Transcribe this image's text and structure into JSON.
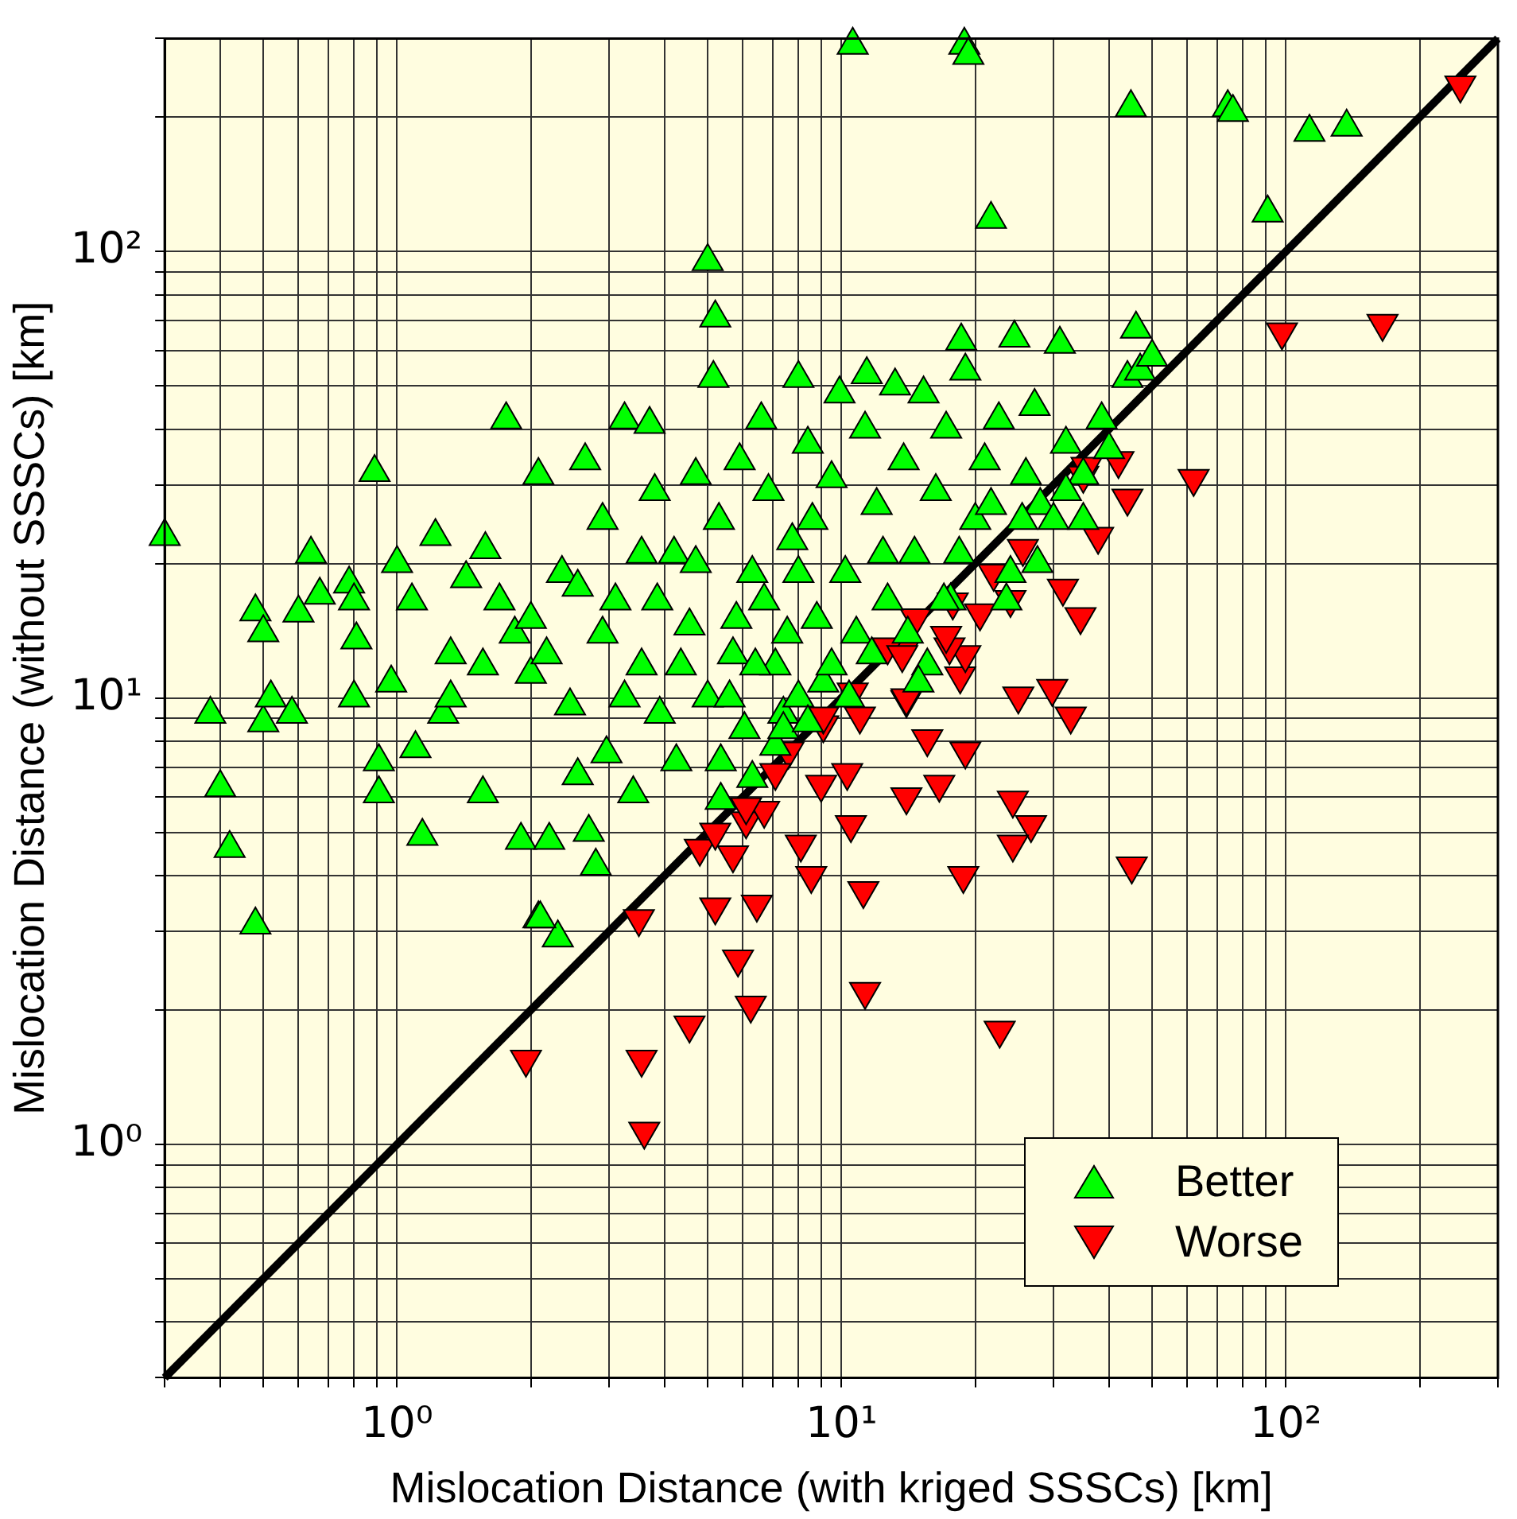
{
  "chart_data": {
    "type": "scatter",
    "xlabel": "Mislocation Distance (with kriged SSSCs) [km]",
    "ylabel": "Mislocation Distance (without SSSCs) [km]",
    "log": "xy",
    "grid": true,
    "legend": "bottom right",
    "xlim": [
      0.3,
      300
    ],
    "ylim": [
      0.3,
      300
    ],
    "xticks": [
      {
        "value": 0.3,
        "label": null
      },
      {
        "value": 0.4,
        "label": null
      },
      {
        "value": 0.5,
        "label": null
      },
      {
        "value": 0.6,
        "label": null
      },
      {
        "value": 0.7,
        "label": null
      },
      {
        "value": 0.8,
        "label": null
      },
      {
        "value": 0.9,
        "label": null
      },
      {
        "value": 1,
        "label": "10⁰"
      },
      {
        "value": 2,
        "label": null
      },
      {
        "value": 3,
        "label": null
      },
      {
        "value": 4,
        "label": null
      },
      {
        "value": 5,
        "label": null
      },
      {
        "value": 6,
        "label": null
      },
      {
        "value": 7,
        "label": null
      },
      {
        "value": 8,
        "label": null
      },
      {
        "value": 9,
        "label": null
      },
      {
        "value": 10,
        "label": "10¹"
      },
      {
        "value": 20,
        "label": null
      },
      {
        "value": 30,
        "label": null
      },
      {
        "value": 40,
        "label": null
      },
      {
        "value": 50,
        "label": null
      },
      {
        "value": 60,
        "label": null
      },
      {
        "value": 70,
        "label": null
      },
      {
        "value": 80,
        "label": null
      },
      {
        "value": 90,
        "label": null
      },
      {
        "value": 100,
        "label": "10²"
      },
      {
        "value": 200,
        "label": null
      },
      {
        "value": 300,
        "label": null
      }
    ],
    "yticks": [
      {
        "value": 0.3,
        "label": null
      },
      {
        "value": 0.4,
        "label": null
      },
      {
        "value": 0.5,
        "label": null
      },
      {
        "value": 0.6,
        "label": null
      },
      {
        "value": 0.7,
        "label": null
      },
      {
        "value": 0.8,
        "label": null
      },
      {
        "value": 0.9,
        "label": null
      },
      {
        "value": 1,
        "label": "10⁰"
      },
      {
        "value": 2,
        "label": null
      },
      {
        "value": 3,
        "label": null
      },
      {
        "value": 4,
        "label": null
      },
      {
        "value": 5,
        "label": null
      },
      {
        "value": 6,
        "label": null
      },
      {
        "value": 7,
        "label": null
      },
      {
        "value": 8,
        "label": null
      },
      {
        "value": 9,
        "label": null
      },
      {
        "value": 10,
        "label": "10¹"
      },
      {
        "value": 20,
        "label": null
      },
      {
        "value": 30,
        "label": null
      },
      {
        "value": 40,
        "label": null
      },
      {
        "value": 50,
        "label": null
      },
      {
        "value": 60,
        "label": null
      },
      {
        "value": 70,
        "label": null
      },
      {
        "value": 80,
        "label": null
      },
      {
        "value": 90,
        "label": null
      },
      {
        "value": 100,
        "label": "10²"
      },
      {
        "value": 200,
        "label": null
      },
      {
        "value": 300,
        "label": null
      }
    ],
    "series": [
      {
        "type": "line",
        "color": "#000000",
        "x": [
          0.3,
          300
        ],
        "values": [
          0.3,
          300
        ],
        "marker": "none",
        "line_style": "solid"
      },
      {
        "name": "Better",
        "color": "#00ff00",
        "marker": "triangle",
        "x": [
          0.3,
          0.38,
          0.4,
          0.42,
          0.48,
          0.48,
          0.5,
          0.5,
          0.52,
          0.6,
          0.58,
          0.64,
          0.67,
          0.78,
          0.8,
          0.81,
          0.8,
          0.89,
          0.91,
          0.91,
          0.97,
          1.0,
          1.08,
          1.1,
          1.14,
          1.22,
          1.27,
          1.32,
          1.43,
          1.58,
          1.56,
          1.76,
          1.84,
          1.9,
          2.0,
          2.08,
          2.08,
          2.2,
          2.3,
          2.35,
          2.45,
          2.55,
          2.65,
          2.7,
          2.8,
          2.9,
          2.96,
          3.1,
          3.25,
          3.4,
          3.55,
          3.7,
          3.8,
          3.9,
          4.2,
          4.25,
          4.55,
          4.7,
          5,
          5,
          5.2,
          5.15,
          5.3,
          5.35,
          5.7,
          5.9,
          6.05,
          6.3,
          6.6,
          6.85,
          7.1,
          7.4,
          7.75,
          8,
          8.4,
          8.8,
          9.1,
          9.5,
          9.9,
          10.2,
          10.8,
          11.3,
          11.4,
          12,
          12.7,
          13.2,
          13.8,
          14.6,
          15.3,
          15.6,
          16.3,
          17.2,
          17.6,
          18.6,
          19,
          20,
          21,
          21.7,
          22.6,
          24,
          24.5,
          26,
          27.2,
          28,
          31,
          32,
          35,
          40,
          38.5,
          44,
          47,
          50,
          46,
          10.6,
          18.9,
          19.3,
          44.8,
          74,
          76,
          113,
          137,
          91,
          1.32,
          1.56,
          1.7,
          2,
          2.17,
          2.55,
          2.9,
          3.25,
          3.55,
          3.85,
          4.35,
          4.7,
          5.6,
          5.8,
          6.4,
          6.7,
          7.55,
          8,
          8.6,
          9.5,
          10.4,
          11.7,
          12.4,
          14.1,
          14.9,
          17,
          18.4,
          21.7,
          23.5,
          25.5,
          27.6,
          30,
          32,
          35,
          8,
          7.1,
          6.3,
          5.35,
          7.4,
          8.4,
          2.1
        ],
        "values": [
          23,
          9.2,
          6.3,
          4.6,
          3.1,
          15.6,
          14,
          8.8,
          10,
          15.5,
          9.2,
          21,
          17,
          18,
          16.5,
          13.5,
          10,
          32,
          7.2,
          6.1,
          10.8,
          20,
          16.5,
          7.7,
          4.9,
          23,
          9.2,
          12.5,
          18.5,
          21.5,
          6.1,
          42,
          13.9,
          4.8,
          11.3,
          31.5,
          3.2,
          4.8,
          2.9,
          19,
          9.6,
          6.7,
          34,
          5.0,
          4.2,
          25,
          7.5,
          16.5,
          42,
          6.1,
          11.8,
          41,
          29,
          9.2,
          21,
          7.2,
          14.5,
          31.5,
          10,
          95,
          71,
          52,
          25,
          7.2,
          12.5,
          34,
          8.5,
          19,
          42,
          29,
          11.8,
          9.2,
          22.5,
          52,
          37,
          15,
          10.8,
          31,
          48,
          19,
          13.9,
          40,
          53,
          27,
          16.5,
          50,
          34,
          21,
          48,
          11.8,
          29,
          40,
          16.5,
          63,
          54,
          25,
          34,
          118,
          42,
          19,
          64,
          31.5,
          45,
          27,
          62,
          37,
          31.5,
          36,
          42,
          52,
          54,
          58,
          67,
          290,
          290,
          275,
          210,
          210,
          205,
          185,
          190,
          122,
          10,
          11.8,
          16.5,
          15,
          12.5,
          17.7,
          13.9,
          10,
          21,
          16.5,
          11.8,
          20,
          10,
          15,
          11.8,
          16.5,
          13.9,
          19,
          25,
          11.8,
          10,
          12.5,
          21,
          13.9,
          10.8,
          16.5,
          21,
          27,
          16.5,
          25,
          20,
          25,
          29,
          25,
          10,
          7.8,
          6.6,
          5.9,
          8.5,
          8.8,
          3.2
        ]
      },
      {
        "name": "Worse",
        "color": "#ff0000",
        "marker": "triangle_down",
        "x": [
          1.95,
          3.55,
          3.6,
          3.5,
          4.55,
          5.85,
          6.25,
          11.3,
          5.2,
          6.45,
          11.2,
          4.8,
          5.7,
          5.2,
          6.1,
          8.55,
          8.1,
          10.5,
          14,
          15.6,
          10.6,
          11,
          9.1,
          7.6,
          7.1,
          9,
          10.3,
          6.7,
          6.1,
          13.8,
          12.7,
          22.7,
          18.8,
          45,
          16.6,
          19,
          24.3,
          26.7,
          24.3,
          14,
          18.5,
          19,
          17.5,
          25,
          29.8,
          32.8,
          247,
          98,
          165,
          62,
          44,
          42,
          35,
          35.6,
          37.8,
          25.6,
          22,
          31.5,
          34.5,
          20.5,
          24,
          17.8,
          17.2,
          14.7,
          13.7,
          14,
          9.1
        ],
        "values": [
          1.55,
          1.55,
          1.07,
          3.2,
          1.85,
          2.6,
          2.05,
          2.2,
          3.4,
          3.45,
          3.7,
          4.6,
          4.45,
          5.0,
          5.3,
          4.0,
          4.7,
          5.2,
          6.0,
          8.1,
          10.3,
          9.1,
          8.7,
          7.6,
          6.8,
          6.4,
          6.8,
          5.6,
          5.7,
          12.8,
          13,
          1.8,
          4.0,
          4.2,
          6.4,
          7.6,
          5.9,
          5.2,
          4.7,
          9.9,
          11.2,
          12.5,
          13,
          10.1,
          10.5,
          9.1,
          236,
          66,
          69,
          31,
          28,
          34,
          31.5,
          33,
          23,
          21.6,
          19,
          17.6,
          15.2,
          15.5,
          16.6,
          16.4,
          13.8,
          15.1,
          12.5,
          10,
          9.1
        ]
      }
    ]
  }
}
